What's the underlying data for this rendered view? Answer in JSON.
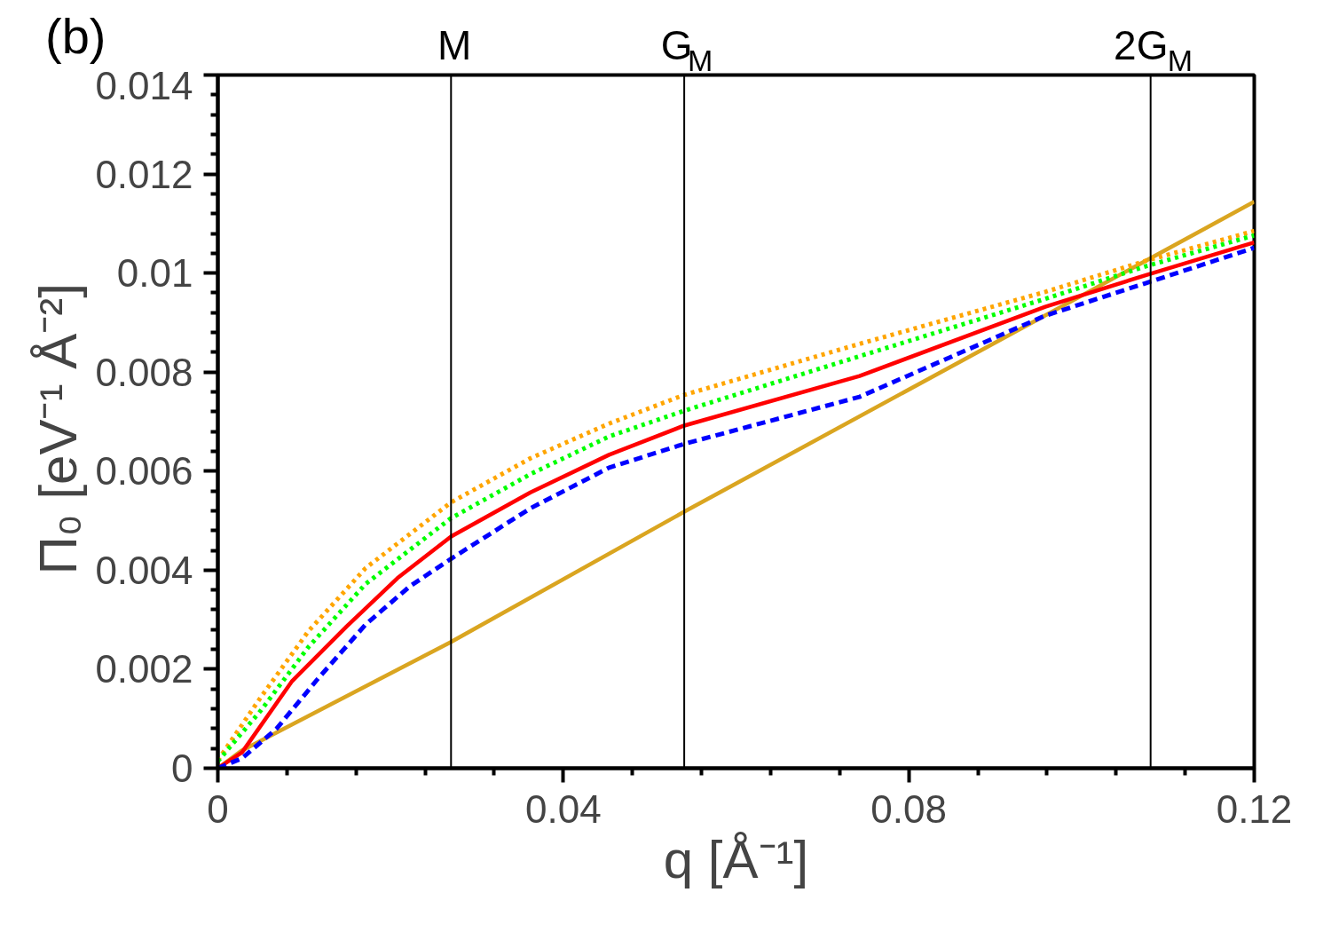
{
  "chart_data": {
    "type": "line",
    "xlabel": "q [Å⁻¹]",
    "ylabel": "Π₀  [eV⁻¹ Å⁻²]",
    "annotations": [
      "(b)"
    ],
    "xlim": [
      0,
      0.12
    ],
    "ylim": [
      0,
      0.014
    ],
    "xticks": [
      0,
      {
        "value": 0.008,
        "label": null
      },
      {
        "value": 0.016,
        "label": null
      },
      {
        "value": 0.024,
        "label": null
      },
      {
        "value": 0.032,
        "label": null
      },
      0.04,
      {
        "value": 0.048,
        "label": null
      },
      {
        "value": 0.056,
        "label": null
      },
      {
        "value": 0.064,
        "label": null
      },
      {
        "value": 0.072,
        "label": null
      },
      0.08,
      {
        "value": 0.088,
        "label": null
      },
      {
        "value": 0.096,
        "label": null
      },
      {
        "value": 0.104,
        "label": null
      },
      {
        "value": 0.112,
        "label": null
      },
      0.12
    ],
    "yticks": [
      0,
      {
        "value": 0.0004,
        "label": null
      },
      {
        "value": 0.0008,
        "label": null
      },
      {
        "value": 0.0012,
        "label": null
      },
      {
        "value": 0.0016,
        "label": null
      },
      0.002,
      {
        "value": 0.0024,
        "label": null
      },
      {
        "value": 0.0028,
        "label": null
      },
      {
        "value": 0.0032,
        "label": null
      },
      {
        "value": 0.0036,
        "label": null
      },
      0.004,
      {
        "value": 0.0044,
        "label": null
      },
      {
        "value": 0.0048,
        "label": null
      },
      {
        "value": 0.0052,
        "label": null
      },
      {
        "value": 0.0056,
        "label": null
      },
      0.006,
      {
        "value": 0.0064,
        "label": null
      },
      {
        "value": 0.0068,
        "label": null
      },
      {
        "value": 0.0072,
        "label": null
      },
      {
        "value": 0.0076,
        "label": null
      },
      0.008,
      {
        "value": 0.0084,
        "label": null
      },
      {
        "value": 0.0088,
        "label": null
      },
      {
        "value": 0.0092,
        "label": null
      },
      {
        "value": 0.0096,
        "label": null
      },
      0.01,
      {
        "value": 0.0104,
        "label": null
      },
      {
        "value": 0.0108,
        "label": null
      },
      {
        "value": 0.0112,
        "label": null
      },
      {
        "value": 0.0116,
        "label": null
      },
      0.012,
      {
        "value": 0.0124,
        "label": null
      },
      {
        "value": 0.0128,
        "label": null
      },
      {
        "value": 0.0132,
        "label": null
      },
      {
        "value": 0.0136,
        "label": null
      },
      0.014
    ],
    "grid": false,
    "ref_lines": [
      {
        "axis": "x",
        "value": 0.027,
        "label": "M",
        "color": "#000000"
      },
      {
        "axis": "x",
        "value": 0.054,
        "label": "G$_{M}$",
        "color": "#000000"
      },
      {
        "axis": "x",
        "value": 0.108,
        "label": "2G$_{M}$",
        "color": "#000000"
      }
    ],
    "series": [
      {
        "color": "#daa520",
        "line_style": "solid",
        "x": [
          0,
          0.0028,
          0.027,
          0.054,
          0.12
        ],
        "values": [
          0,
          0.00036,
          0.00255,
          0.00518,
          0.01144
        ]
      },
      {
        "color": "#ffa500",
        "line_style": "dotted",
        "x": [
          0,
          0.005,
          0.0105,
          0.0171,
          0.027,
          0.0362,
          0.0453,
          0.054,
          0.0743,
          0.0958,
          0.1075,
          0.12
        ],
        "values": [
          0.00016,
          0.00144,
          0.00277,
          0.00404,
          0.00537,
          0.00626,
          0.00696,
          0.00754,
          0.00857,
          0.00962,
          0.01025,
          0.01085
        ]
      },
      {
        "color": "#00ff00",
        "line_style": "dotted",
        "x": [
          0,
          0.005,
          0.0105,
          0.0171,
          0.027,
          0.0362,
          0.0453,
          0.054,
          0.0743,
          0.0958,
          0.1075,
          0.12
        ],
        "values": [
          0.00014,
          0.00117,
          0.00245,
          0.00372,
          0.00505,
          0.00594,
          0.0067,
          0.00722,
          0.00832,
          0.00948,
          0.01014,
          0.01076
        ]
      },
      {
        "color": "#ff0000",
        "line_style": "solid",
        "x": [
          0,
          0.0028,
          0.0086,
          0.0149,
          0.0208,
          0.027,
          0.0362,
          0.0453,
          0.054,
          0.0743,
          0.0958,
          0.1075,
          0.12
        ],
        "values": [
          0,
          0.00032,
          0.00176,
          0.00286,
          0.00384,
          0.00468,
          0.00557,
          0.00633,
          0.00692,
          0.00792,
          0.00932,
          0.00996,
          0.01062
        ]
      },
      {
        "color": "#0000ff",
        "line_style": "dashed",
        "x": [
          0,
          0.0028,
          0.0068,
          0.0116,
          0.0171,
          0.0222,
          0.027,
          0.0362,
          0.0453,
          0.054,
          0.0743,
          0.0958,
          0.1075,
          0.12
        ],
        "values": [
          0,
          0.0002,
          0.0008,
          0.00181,
          0.0029,
          0.00367,
          0.00423,
          0.00525,
          0.00607,
          0.00655,
          0.0075,
          0.00914,
          0.0098,
          0.01051
        ]
      }
    ]
  }
}
